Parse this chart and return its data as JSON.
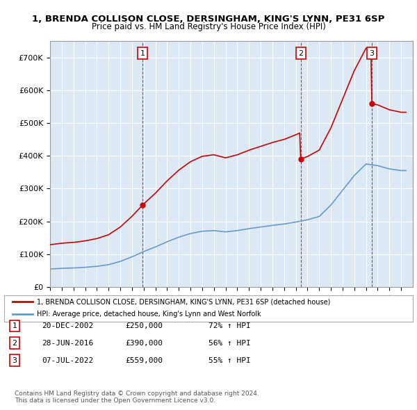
{
  "title1": "1, BRENDA COLLISON CLOSE, DERSINGHAM, KING'S LYNN, PE31 6SP",
  "title2": "Price paid vs. HM Land Registry's House Price Index (HPI)",
  "legend_line1": "1, BRENDA COLLISON CLOSE, DERSINGHAM, KING'S LYNN, PE31 6SP (detached house)",
  "legend_line2": "HPI: Average price, detached house, King's Lynn and West Norfolk",
  "sale_dates": [
    "2002-12-20",
    "2016-06-28",
    "2022-07-07"
  ],
  "sale_prices": [
    250000,
    390000,
    559000
  ],
  "sale_labels": [
    "1",
    "2",
    "3"
  ],
  "sale_info": [
    {
      "label": "1",
      "date": "20-DEC-2002",
      "price": "£250,000",
      "hpi": "72% ↑ HPI"
    },
    {
      "label": "2",
      "date": "28-JUN-2016",
      "price": "£390,000",
      "hpi": "56% ↑ HPI"
    },
    {
      "label": "3",
      "date": "07-JUL-2022",
      "price": "£559,000",
      "hpi": "55% ↑ HPI"
    }
  ],
  "footer": "Contains HM Land Registry data © Crown copyright and database right 2024.\nThis data is licensed under the Open Government Licence v3.0.",
  "red_color": "#cc0000",
  "blue_color": "#6699cc",
  "bg_color": "#dce9f5",
  "grid_color": "#ffffff",
  "ylim": [
    0,
    750000
  ],
  "yticks": [
    0,
    100000,
    200000,
    300000,
    400000,
    500000,
    600000,
    700000
  ]
}
